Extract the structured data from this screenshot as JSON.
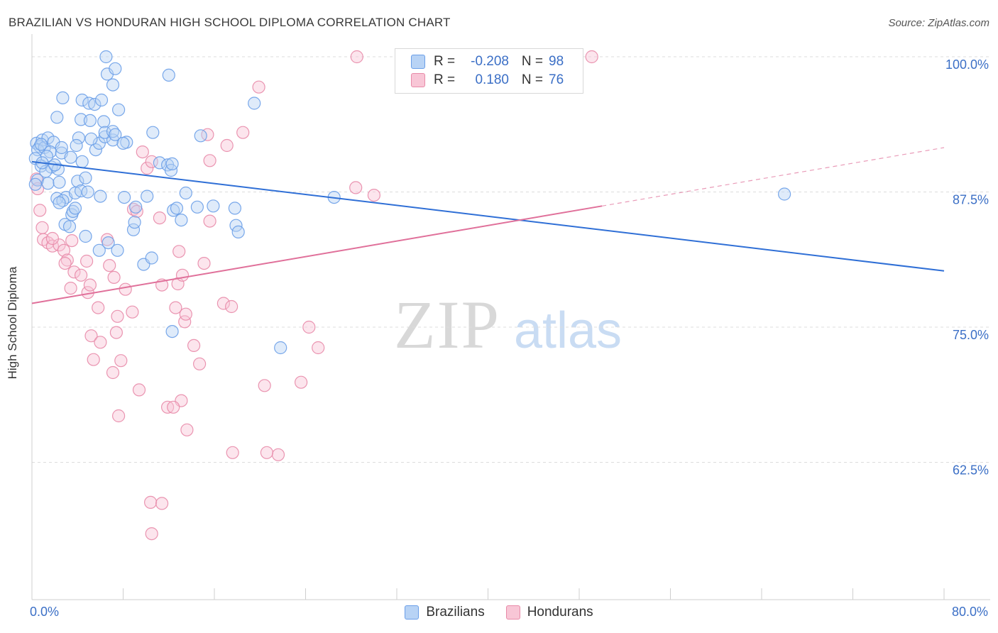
{
  "title": "BRAZILIAN VS HONDURAN HIGH SCHOOL DIPLOMA CORRELATION CHART",
  "source": "Source: ZipAtlas.com",
  "watermark": {
    "zip": "ZIP",
    "atlas": "atlas"
  },
  "legend": {
    "r_label": "R =",
    "n_label": "N =",
    "rows": [
      {
        "r": "-0.208",
        "n": "98"
      },
      {
        "r": "0.180",
        "n": "76"
      }
    ]
  },
  "chart_data": {
    "type": "scatter",
    "title": "BRAZILIAN VS HONDURAN HIGH SCHOOL DIPLOMA CORRELATION CHART",
    "xlabel": "",
    "ylabel": "High School Diploma",
    "x_tick_labels": [
      "0.0%",
      "80.0%"
    ],
    "y_tick_labels": [
      "100.0%",
      "87.5%",
      "75.0%",
      "62.5%"
    ],
    "y_ticks": [
      100.0,
      87.5,
      75.0,
      62.5
    ],
    "xlim": [
      0,
      80
    ],
    "ylim": [
      50.2,
      101.5
    ],
    "grid": true,
    "legend_position": "bottom-center",
    "colors": {
      "brazilians": "#6a9ee8",
      "brazilians_fill": "#b8d3f5",
      "hondurans": "#e88aa8",
      "hondurans_fill": "#f8c6d6",
      "blue_line": "#2f6fd6",
      "pink_line": "#e0709a",
      "tick_text": "#3b6fc6"
    },
    "series": [
      {
        "name": "Brazilians",
        "r": -0.208,
        "n": 98,
        "trend": {
          "x": [
            0,
            80
          ],
          "y": [
            90.3,
            80.2
          ]
        },
        "points": [
          [
            0.4,
            92.0
          ],
          [
            0.7,
            91.7
          ],
          [
            0.9,
            92.3
          ],
          [
            0.5,
            91.4
          ],
          [
            1.1,
            91.6
          ],
          [
            1.4,
            92.5
          ],
          [
            1.9,
            92.1
          ],
          [
            1.6,
            91.2
          ],
          [
            1.3,
            90.8
          ],
          [
            2.6,
            91.1
          ],
          [
            3.4,
            90.7
          ],
          [
            4.4,
            90.3
          ],
          [
            5.6,
            91.4
          ],
          [
            5.9,
            92.0
          ],
          [
            6.4,
            92.6
          ],
          [
            7.1,
            92.3
          ],
          [
            8.3,
            92.1
          ],
          [
            0.3,
            90.6
          ],
          [
            0.8,
            89.9
          ],
          [
            1.7,
            89.8
          ],
          [
            2.3,
            89.6
          ],
          [
            0.5,
            88.6
          ],
          [
            1.4,
            88.3
          ],
          [
            2.4,
            88.4
          ],
          [
            4.0,
            88.5
          ],
          [
            4.7,
            88.8
          ],
          [
            3.0,
            87.0
          ],
          [
            3.8,
            87.4
          ],
          [
            4.3,
            87.6
          ],
          [
            2.2,
            86.9
          ],
          [
            2.7,
            86.7
          ],
          [
            2.4,
            86.5
          ],
          [
            3.5,
            85.4
          ],
          [
            3.6,
            85.7
          ],
          [
            3.8,
            86.0
          ],
          [
            2.9,
            84.5
          ],
          [
            3.3,
            84.3
          ],
          [
            4.7,
            83.4
          ],
          [
            5.9,
            82.1
          ],
          [
            6.7,
            82.8
          ],
          [
            7.5,
            82.1
          ],
          [
            8.9,
            84.0
          ],
          [
            9.0,
            84.7
          ],
          [
            9.1,
            86.1
          ],
          [
            9.8,
            80.8
          ],
          [
            10.5,
            81.4
          ],
          [
            11.2,
            90.2
          ],
          [
            11.9,
            90.0
          ],
          [
            12.2,
            89.5
          ],
          [
            12.3,
            90.1
          ],
          [
            12.3,
            74.6
          ],
          [
            12.4,
            85.8
          ],
          [
            12.7,
            86.0
          ],
          [
            13.1,
            84.9
          ],
          [
            13.5,
            87.4
          ],
          [
            14.5,
            86.1
          ],
          [
            14.8,
            92.7
          ],
          [
            15.9,
            86.2
          ],
          [
            17.8,
            86.0
          ],
          [
            17.9,
            84.4
          ],
          [
            18.1,
            83.8
          ],
          [
            19.5,
            95.7
          ],
          [
            21.8,
            73.1
          ],
          [
            26.5,
            87.0
          ],
          [
            66.0,
            87.3
          ],
          [
            2.2,
            94.4
          ],
          [
            2.7,
            96.2
          ],
          [
            4.4,
            96.0
          ],
          [
            5.0,
            95.7
          ],
          [
            5.5,
            95.6
          ],
          [
            6.1,
            96.0
          ],
          [
            7.6,
            95.1
          ],
          [
            4.3,
            94.2
          ],
          [
            5.1,
            94.1
          ],
          [
            6.3,
            94.0
          ],
          [
            6.4,
            93.0
          ],
          [
            7.1,
            93.1
          ],
          [
            7.3,
            92.8
          ],
          [
            10.6,
            93.0
          ],
          [
            8.0,
            92.0
          ],
          [
            4.1,
            92.5
          ],
          [
            6.6,
            98.4
          ],
          [
            7.1,
            97.4
          ],
          [
            7.3,
            98.9
          ],
          [
            6.5,
            100.0
          ],
          [
            12.0,
            98.3
          ],
          [
            3.9,
            91.8
          ],
          [
            5.2,
            92.4
          ],
          [
            0.8,
            91.9
          ],
          [
            2.6,
            91.6
          ],
          [
            1.2,
            89.4
          ],
          [
            2.0,
            90.0
          ],
          [
            0.9,
            90.2
          ],
          [
            0.3,
            88.2
          ],
          [
            4.9,
            87.5
          ],
          [
            6.0,
            87.1
          ],
          [
            8.1,
            87.0
          ],
          [
            10.1,
            87.1
          ]
        ]
      },
      {
        "name": "Hondurans",
        "r": 0.18,
        "n": 76,
        "trend": {
          "x": [
            0,
            50
          ],
          "y": [
            77.2,
            86.2
          ]
        },
        "trend_dashed": {
          "x": [
            50,
            80
          ],
          "y": [
            86.2,
            91.6
          ]
        },
        "points": [
          [
            0.4,
            88.7
          ],
          [
            0.5,
            87.8
          ],
          [
            0.7,
            85.8
          ],
          [
            0.9,
            84.2
          ],
          [
            1.0,
            83.1
          ],
          [
            1.4,
            82.8
          ],
          [
            1.8,
            82.5
          ],
          [
            2.4,
            82.6
          ],
          [
            2.8,
            82.1
          ],
          [
            3.1,
            81.2
          ],
          [
            2.9,
            80.9
          ],
          [
            3.7,
            80.1
          ],
          [
            3.4,
            78.6
          ],
          [
            4.3,
            79.8
          ],
          [
            4.9,
            78.2
          ],
          [
            5.1,
            78.9
          ],
          [
            5.8,
            76.8
          ],
          [
            5.2,
            74.2
          ],
          [
            6.6,
            83.1
          ],
          [
            6.8,
            80.7
          ],
          [
            7.2,
            79.6
          ],
          [
            7.4,
            74.5
          ],
          [
            7.5,
            76.0
          ],
          [
            8.2,
            78.5
          ],
          [
            8.8,
            76.4
          ],
          [
            8.9,
            85.9
          ],
          [
            9.2,
            85.7
          ],
          [
            9.7,
            91.2
          ],
          [
            10.1,
            89.7
          ],
          [
            10.5,
            90.3
          ],
          [
            11.2,
            85.1
          ],
          [
            11.4,
            78.9
          ],
          [
            12.6,
            76.8
          ],
          [
            12.8,
            79.0
          ],
          [
            12.9,
            82.0
          ],
          [
            13.2,
            79.8
          ],
          [
            13.4,
            75.5
          ],
          [
            13.5,
            76.2
          ],
          [
            14.2,
            73.3
          ],
          [
            15.1,
            80.9
          ],
          [
            15.6,
            84.8
          ],
          [
            15.6,
            90.4
          ],
          [
            16.8,
            77.2
          ],
          [
            17.5,
            76.9
          ],
          [
            15.4,
            92.8
          ],
          [
            17.1,
            91.8
          ],
          [
            18.5,
            93.0
          ],
          [
            19.9,
            97.2
          ],
          [
            20.4,
            69.6
          ],
          [
            21.6,
            63.2
          ],
          [
            23.6,
            69.9
          ],
          [
            24.3,
            75.0
          ],
          [
            25.1,
            73.1
          ],
          [
            28.4,
            87.9
          ],
          [
            28.5,
            100.0
          ],
          [
            30.0,
            87.2
          ],
          [
            49.1,
            100.0
          ],
          [
            1.8,
            83.2
          ],
          [
            3.5,
            83.0
          ],
          [
            4.8,
            81.1
          ],
          [
            5.4,
            72.0
          ],
          [
            6.0,
            73.6
          ],
          [
            7.1,
            70.8
          ],
          [
            7.8,
            71.9
          ],
          [
            7.6,
            66.8
          ],
          [
            9.4,
            69.2
          ],
          [
            10.4,
            58.8
          ],
          [
            11.4,
            58.7
          ],
          [
            10.5,
            55.9
          ],
          [
            11.9,
            67.6
          ],
          [
            13.1,
            68.2
          ],
          [
            13.6,
            65.5
          ],
          [
            17.6,
            63.4
          ],
          [
            20.6,
            63.4
          ],
          [
            12.4,
            67.6
          ],
          [
            14.7,
            71.6
          ]
        ]
      }
    ]
  },
  "x_axis": {
    "left_label": "0.0%",
    "right_label": "80.0%"
  },
  "bottom_legend": [
    "Brazilians",
    "Hondurans"
  ]
}
